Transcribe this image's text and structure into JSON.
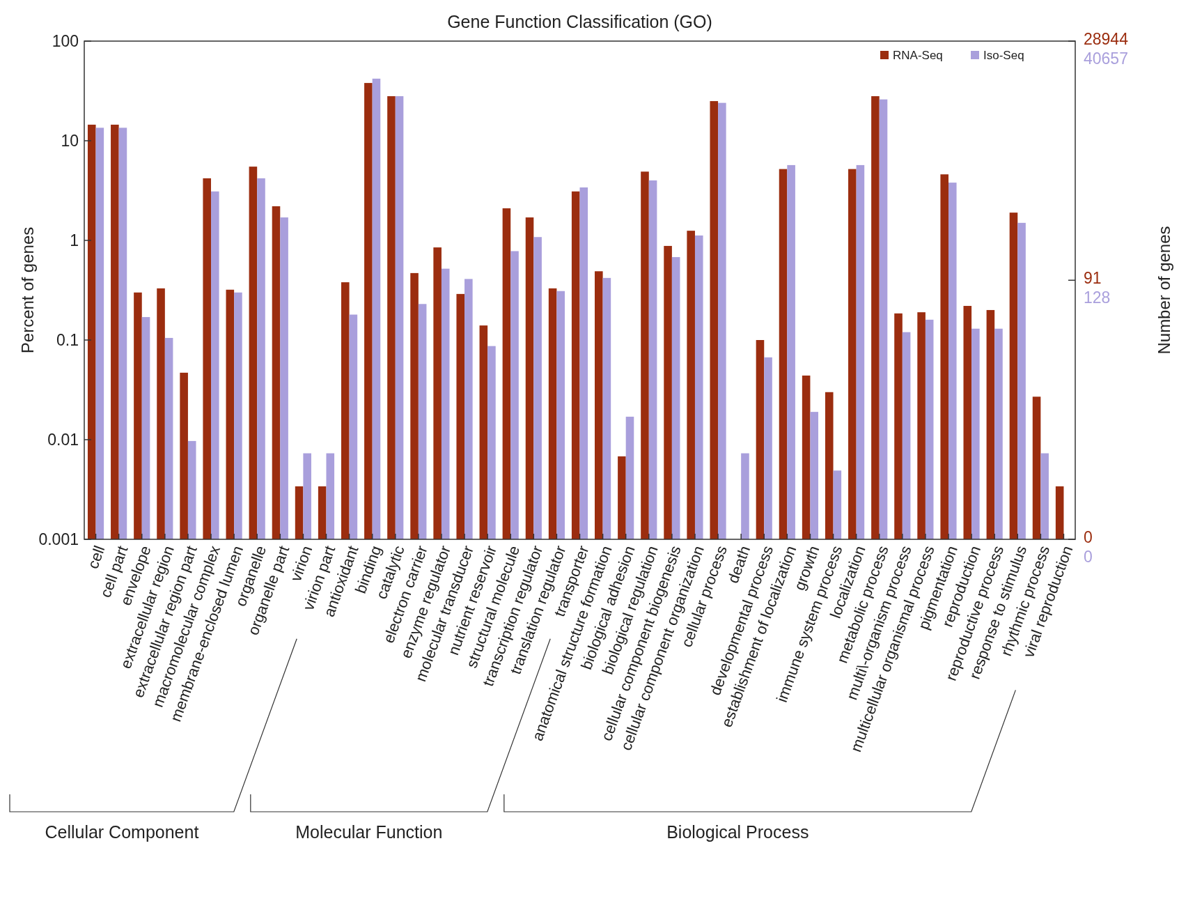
{
  "chart_data": {
    "type": "bar",
    "title": "Gene Function Classification (GO)",
    "ylabel": "Percent of genes",
    "y2label": "Number of genes",
    "categories": [
      "cell",
      "cell part",
      "envelope",
      "extracellular region",
      "extracellular region part",
      "macromolecular complex",
      "membrane-enclosed lumen",
      "organelle",
      "organelle part",
      "virion",
      "virion part",
      "antioxidant",
      "binding",
      "catalytic",
      "electron carrier",
      "enzyme regulator",
      "molecular transducer",
      "nutrient reservoir",
      "structural molecule",
      "transcription regulator",
      "translation regulator",
      "transporter",
      "anatomical structure formation",
      "biological adhesion",
      "biological regulation",
      "cellular component biogenesis",
      "cellular component organization",
      "cellular process",
      "death",
      "developmental process",
      "establishment of localization",
      "growth",
      "immune system process",
      "localization",
      "metabolic process",
      "multi\\-organism process",
      "multicellular organismal process",
      "pigmentation",
      "reproduction",
      "reproductive process",
      "response to stimulus",
      "rhythmic process",
      "viral reproduction"
    ],
    "series": [
      {
        "name": "RNA-Seq",
        "color": "#9b2d0f",
        "values": [
          14.5,
          14.5,
          0.3,
          0.33,
          0.047,
          4.2,
          0.32,
          5.5,
          2.2,
          0.0034,
          0.0034,
          0.38,
          38,
          28,
          0.47,
          0.85,
          0.29,
          0.14,
          2.1,
          1.7,
          0.33,
          3.1,
          0.49,
          0.0068,
          4.9,
          0.88,
          1.25,
          25,
          null,
          0.1,
          5.2,
          0.044,
          0.03,
          5.2,
          28,
          0.185,
          0.19,
          4.6,
          0.22,
          0.2,
          1.9,
          0.027,
          0.0034
        ]
      },
      {
        "name": "Iso-Seq",
        "color": "#a99fdc",
        "values": [
          13.5,
          13.5,
          0.17,
          0.105,
          0.0097,
          3.1,
          0.3,
          4.2,
          1.7,
          0.0073,
          0.0073,
          0.18,
          42,
          28,
          0.23,
          0.52,
          0.41,
          0.087,
          0.78,
          1.08,
          0.31,
          3.4,
          0.42,
          0.017,
          4.0,
          0.68,
          1.12,
          24,
          0.0073,
          0.067,
          5.7,
          0.019,
          0.0049,
          5.7,
          26,
          0.12,
          0.16,
          3.8,
          0.13,
          0.13,
          1.5,
          0.0073,
          null
        ]
      }
    ],
    "ylim": [
      0.001,
      100
    ],
    "yticks": [
      {
        "value": 0.001,
        "label": "0.001"
      },
      {
        "value": 0.01,
        "label": "0.01"
      },
      {
        "value": 0.1,
        "label": "0.1"
      },
      1,
      10,
      100
    ],
    "log": true,
    "grid": false,
    "legend": "top right",
    "annotations": [
      "Cellular Component",
      "Molecular Function",
      "Biological Process",
      "28944",
      "91",
      "0",
      "40657",
      "128",
      "0"
    ]
  }
}
